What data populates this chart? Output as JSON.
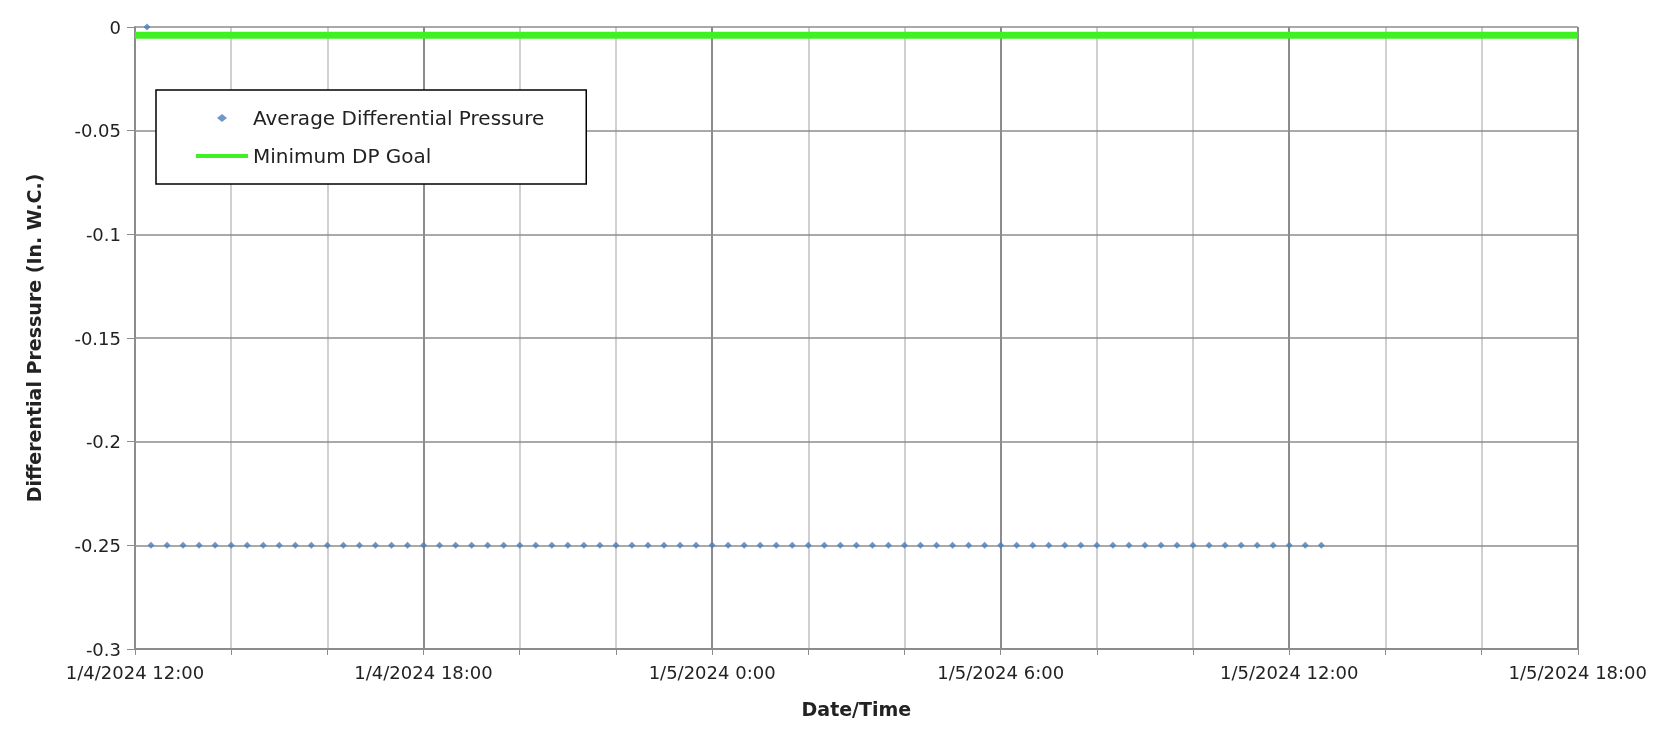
{
  "chart_data": {
    "type": "scatter",
    "xlabel": "Date/Time",
    "ylabel": "Differential Pressure (In. W.C.)",
    "xlim": [
      "2024-01-04T12:00",
      "2024-01-05T18:00"
    ],
    "xticks": [
      {
        "value": "2024-01-04T12:00",
        "label": "1/4/2024 12:00"
      },
      {
        "value": "2024-01-04T14:00",
        "label": null
      },
      {
        "value": "2024-01-04T16:00",
        "label": null
      },
      {
        "value": "2024-01-04T18:00",
        "label": "1/4/2024 18:00"
      },
      {
        "value": "2024-01-04T20:00",
        "label": null
      },
      {
        "value": "2024-01-04T22:00",
        "label": null
      },
      {
        "value": "2024-01-05T00:00",
        "label": "1/5/2024 0:00"
      },
      {
        "value": "2024-01-05T02:00",
        "label": null
      },
      {
        "value": "2024-01-05T04:00",
        "label": null
      },
      {
        "value": "2024-01-05T06:00",
        "label": "1/5/2024 6:00"
      },
      {
        "value": "2024-01-05T08:00",
        "label": null
      },
      {
        "value": "2024-01-05T10:00",
        "label": null
      },
      {
        "value": "2024-01-05T12:00",
        "label": "1/5/2024 12:00"
      },
      {
        "value": "2024-01-05T14:00",
        "label": null
      },
      {
        "value": "2024-01-05T16:00",
        "label": null
      },
      {
        "value": "2024-01-05T18:00",
        "label": "1/5/2024 18:00"
      }
    ],
    "ylim": [
      -0.3,
      0
    ],
    "yticks": [
      -0.3,
      -0.25,
      -0.2,
      -0.15,
      -0.1,
      -0.05,
      0
    ],
    "grid": true,
    "legend": "top left",
    "series": [
      {
        "name": "Average Differential Pressure",
        "marker": "diamond",
        "color": "#4a7ebb",
        "x": [
          "2024-01-04T12:15",
          "2024-01-04T12:20",
          "2024-01-04T12:40",
          "2024-01-04T13:00",
          "2024-01-04T13:20",
          "2024-01-04T13:40",
          "2024-01-04T14:00",
          "2024-01-04T14:20",
          "2024-01-04T14:40",
          "2024-01-04T15:00",
          "2024-01-04T15:20",
          "2024-01-04T15:40",
          "2024-01-04T16:00",
          "2024-01-04T16:20",
          "2024-01-04T16:40",
          "2024-01-04T17:00",
          "2024-01-04T17:20",
          "2024-01-04T17:40",
          "2024-01-04T18:00",
          "2024-01-04T18:20",
          "2024-01-04T18:40",
          "2024-01-04T19:00",
          "2024-01-04T19:20",
          "2024-01-04T19:40",
          "2024-01-04T20:00",
          "2024-01-04T20:20",
          "2024-01-04T20:40",
          "2024-01-04T21:00",
          "2024-01-04T21:20",
          "2024-01-04T21:40",
          "2024-01-04T22:00",
          "2024-01-04T22:20",
          "2024-01-04T22:40",
          "2024-01-04T23:00",
          "2024-01-04T23:20",
          "2024-01-04T23:40",
          "2024-01-05T00:00",
          "2024-01-05T00:20",
          "2024-01-05T00:40",
          "2024-01-05T01:00",
          "2024-01-05T01:20",
          "2024-01-05T01:40",
          "2024-01-05T02:00",
          "2024-01-05T02:20",
          "2024-01-05T02:40",
          "2024-01-05T03:00",
          "2024-01-05T03:20",
          "2024-01-05T03:40",
          "2024-01-05T04:00",
          "2024-01-05T04:20",
          "2024-01-05T04:40",
          "2024-01-05T05:00",
          "2024-01-05T05:20",
          "2024-01-05T05:40",
          "2024-01-05T06:00",
          "2024-01-05T06:20",
          "2024-01-05T06:40",
          "2024-01-05T07:00",
          "2024-01-05T07:20",
          "2024-01-05T07:40",
          "2024-01-05T08:00",
          "2024-01-05T08:20",
          "2024-01-05T08:40",
          "2024-01-05T09:00",
          "2024-01-05T09:20",
          "2024-01-05T09:40",
          "2024-01-05T10:00",
          "2024-01-05T10:20",
          "2024-01-05T10:40",
          "2024-01-05T11:00",
          "2024-01-05T11:20",
          "2024-01-05T11:40",
          "2024-01-05T12:00",
          "2024-01-05T12:20",
          "2024-01-05T12:40"
        ],
        "values": [
          0,
          -0.25,
          -0.25,
          -0.25,
          -0.25,
          -0.25,
          -0.25,
          -0.25,
          -0.25,
          -0.25,
          -0.25,
          -0.25,
          -0.25,
          -0.25,
          -0.25,
          -0.25,
          -0.25,
          -0.25,
          -0.25,
          -0.25,
          -0.25,
          -0.25,
          -0.25,
          -0.25,
          -0.25,
          -0.25,
          -0.25,
          -0.25,
          -0.25,
          -0.25,
          -0.25,
          -0.25,
          -0.25,
          -0.25,
          -0.25,
          -0.25,
          -0.25,
          -0.25,
          -0.25,
          -0.25,
          -0.25,
          -0.25,
          -0.25,
          -0.25,
          -0.25,
          -0.25,
          -0.25,
          -0.25,
          -0.25,
          -0.25,
          -0.25,
          -0.25,
          -0.25,
          -0.25,
          -0.25,
          -0.25,
          -0.25,
          -0.25,
          -0.25,
          -0.25,
          -0.25,
          -0.25,
          -0.25,
          -0.25,
          -0.25,
          -0.25,
          -0.25,
          -0.25,
          -0.25,
          -0.25,
          -0.25,
          -0.25,
          -0.25,
          -0.25,
          -0.25
        ]
      },
      {
        "name": "Minimum DP Goal",
        "type": "line",
        "marker": "none",
        "line_style": "solid",
        "color": "#3ff022",
        "x": [
          "2024-01-04T12:00",
          "2024-01-05T18:00"
        ],
        "values": [
          -0.004,
          -0.004
        ]
      }
    ]
  }
}
